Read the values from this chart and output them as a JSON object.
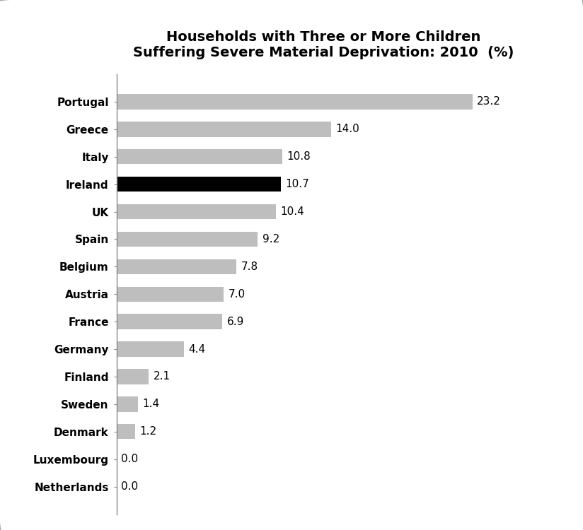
{
  "title": "Households with Three or More Children\nSuffering Severe Material Deprivation: 2010  (%)",
  "categories": [
    "Portugal",
    "Greece",
    "Italy",
    "Ireland",
    "UK",
    "Spain",
    "Belgium",
    "Austria",
    "France",
    "Germany",
    "Finland",
    "Sweden",
    "Denmark",
    "Luxembourg",
    "Netherlands"
  ],
  "values": [
    23.2,
    14.0,
    10.8,
    10.7,
    10.4,
    9.2,
    7.8,
    7.0,
    6.9,
    4.4,
    2.1,
    1.4,
    1.2,
    0.0,
    0.0
  ],
  "bar_colors": [
    "#BEBEBE",
    "#BEBEBE",
    "#BEBEBE",
    "#000000",
    "#BEBEBE",
    "#BEBEBE",
    "#BEBEBE",
    "#BEBEBE",
    "#BEBEBE",
    "#BEBEBE",
    "#BEBEBE",
    "#BEBEBE",
    "#BEBEBE",
    "#BEBEBE",
    "#BEBEBE"
  ],
  "background_color": "#FFFFFF",
  "border_color": "#AAAAAA",
  "title_fontsize": 14,
  "label_fontsize": 11,
  "value_fontsize": 11,
  "xlim": [
    0,
    27
  ],
  "bar_height": 0.55
}
